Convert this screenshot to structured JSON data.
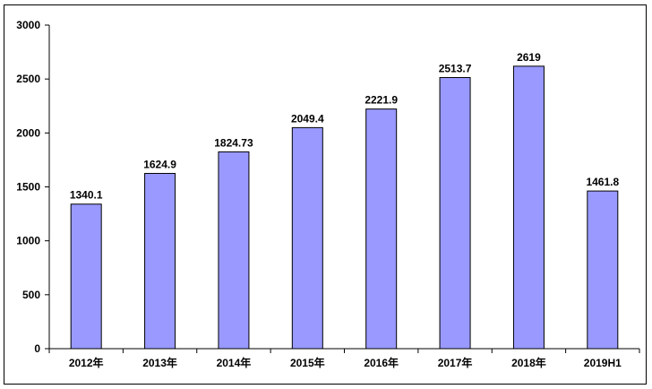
{
  "chart_data": {
    "type": "bar",
    "categories": [
      "2012年",
      "2013年",
      "2014年",
      "2015年",
      "2016年",
      "2017年",
      "2018年",
      "2019H1"
    ],
    "values": [
      1340.1,
      1624.9,
      1824.73,
      2049.4,
      2221.9,
      2513.7,
      2619,
      1461.8
    ],
    "data_labels": [
      "1340.1",
      "1624.9",
      "1824.73",
      "2049.4",
      "2221.9",
      "2513.7",
      "2619",
      "1461.8"
    ],
    "y_ticks": [
      "0",
      "500",
      "1000",
      "1500",
      "2000",
      "2500",
      "3000"
    ],
    "ylim": [
      0,
      3000
    ],
    "grid": false,
    "legend": "none",
    "title": "",
    "xlabel": "",
    "ylabel": "",
    "bar_color": "#9999ff",
    "bar_border_color": "#000000"
  }
}
